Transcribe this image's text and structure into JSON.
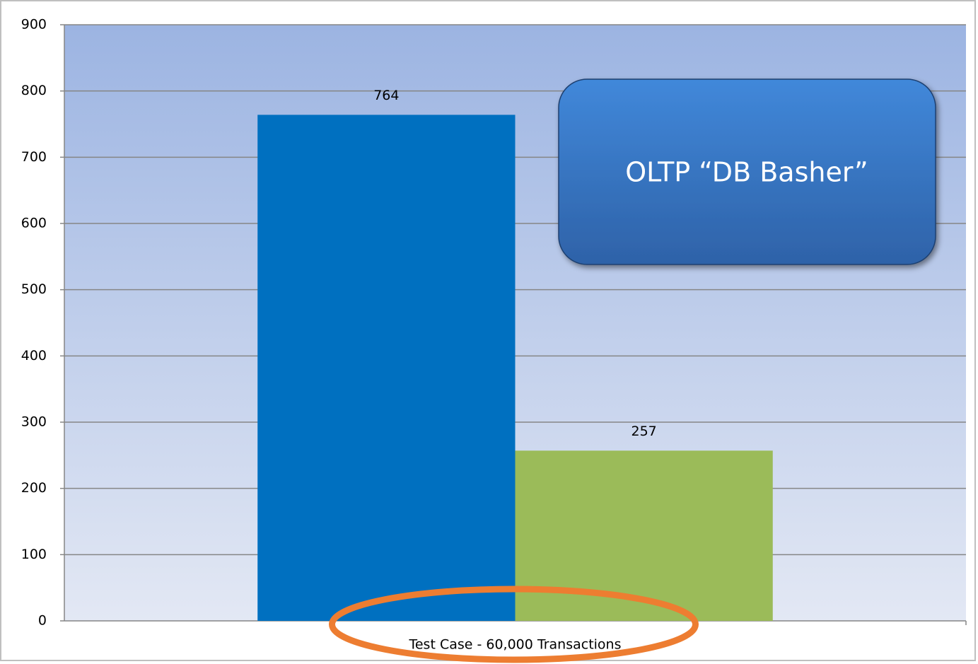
{
  "chart_data": {
    "type": "bar",
    "categories": [
      "Test Case - 60,000 Transactions"
    ],
    "series": [
      {
        "color": "#0070c0",
        "values": [
          764
        ]
      },
      {
        "color": "#9bbb59",
        "values": [
          257
        ]
      }
    ],
    "ylim": [
      0,
      900
    ],
    "yticks": [
      0,
      100,
      200,
      300,
      400,
      500,
      600,
      700,
      800,
      900
    ],
    "grid": true,
    "annotations": [
      "OLTP “DB Basher”"
    ]
  }
}
